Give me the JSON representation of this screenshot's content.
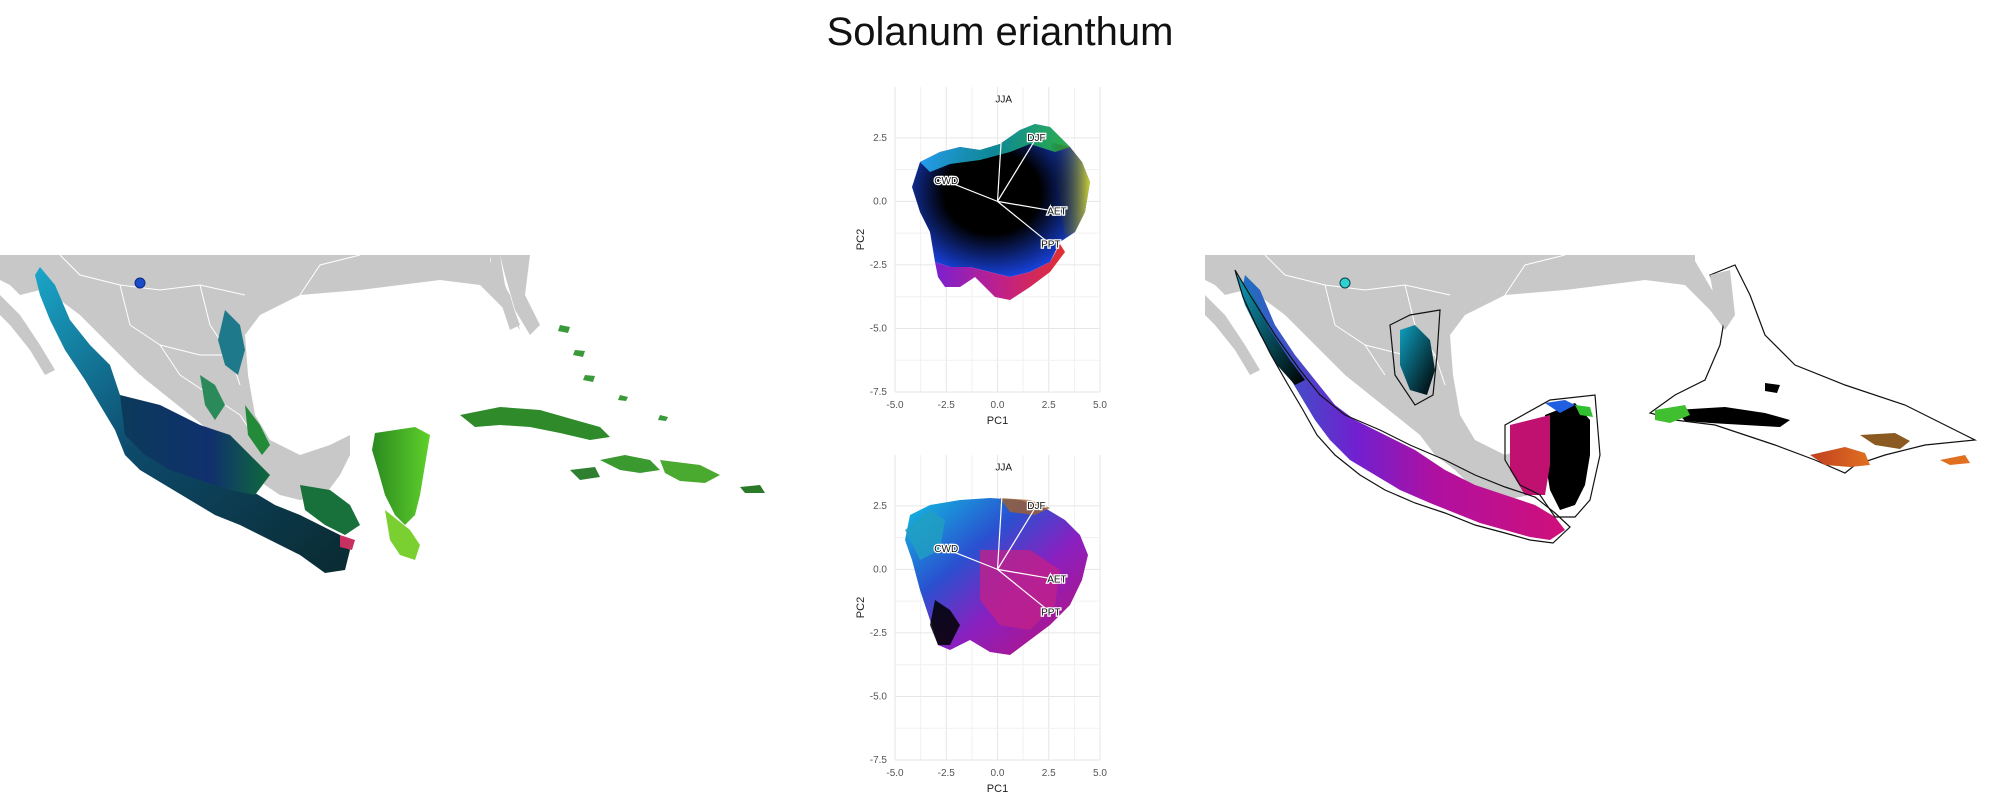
{
  "title": "Solanum erianthum",
  "colors": {
    "land": "#c8c8c8",
    "border": "#ffffff",
    "grid": "#e6e6e6",
    "loading_line": "#ffffff"
  },
  "chart_data": [
    {
      "type": "scatter",
      "panel": "pca-top",
      "xlabel": "PC1",
      "ylabel": "PC2",
      "xlim": [
        -5,
        5
      ],
      "ylim": [
        -7.5,
        4.5
      ],
      "xticks": [
        "-5.0",
        "-2.5",
        "0.0",
        "2.5",
        "5.0"
      ],
      "yticks": [
        "-7.5",
        "-5.0",
        "-2.5",
        "0.0",
        "2.5"
      ],
      "grid": true,
      "loadings": [
        {
          "name": "JJA",
          "x": 0.3,
          "y": 4.0
        },
        {
          "name": "DJF",
          "x": 1.9,
          "y": 2.5
        },
        {
          "name": "CWD",
          "x": -2.5,
          "y": 0.8
        },
        {
          "name": "AET",
          "x": 2.9,
          "y": -0.4
        },
        {
          "name": "PPT",
          "x": 2.6,
          "y": -1.7
        }
      ]
    },
    {
      "type": "scatter",
      "panel": "pca-bottom",
      "xlabel": "PC1",
      "ylabel": "PC2",
      "xlim": [
        -5,
        5
      ],
      "ylim": [
        -7.5,
        4.5
      ],
      "xticks": [
        "-5.0",
        "-2.5",
        "0.0",
        "2.5",
        "5.0"
      ],
      "yticks": [
        "-7.5",
        "-5.0",
        "-2.5",
        "0.0",
        "2.5"
      ],
      "grid": true,
      "loadings": [
        {
          "name": "JJA",
          "x": 0.3,
          "y": 4.0
        },
        {
          "name": "DJF",
          "x": 1.9,
          "y": 2.5
        },
        {
          "name": "CWD",
          "x": -2.5,
          "y": 0.8
        },
        {
          "name": "AET",
          "x": 2.9,
          "y": -0.4
        },
        {
          "name": "PPT",
          "x": 2.6,
          "y": -1.7
        }
      ]
    }
  ]
}
